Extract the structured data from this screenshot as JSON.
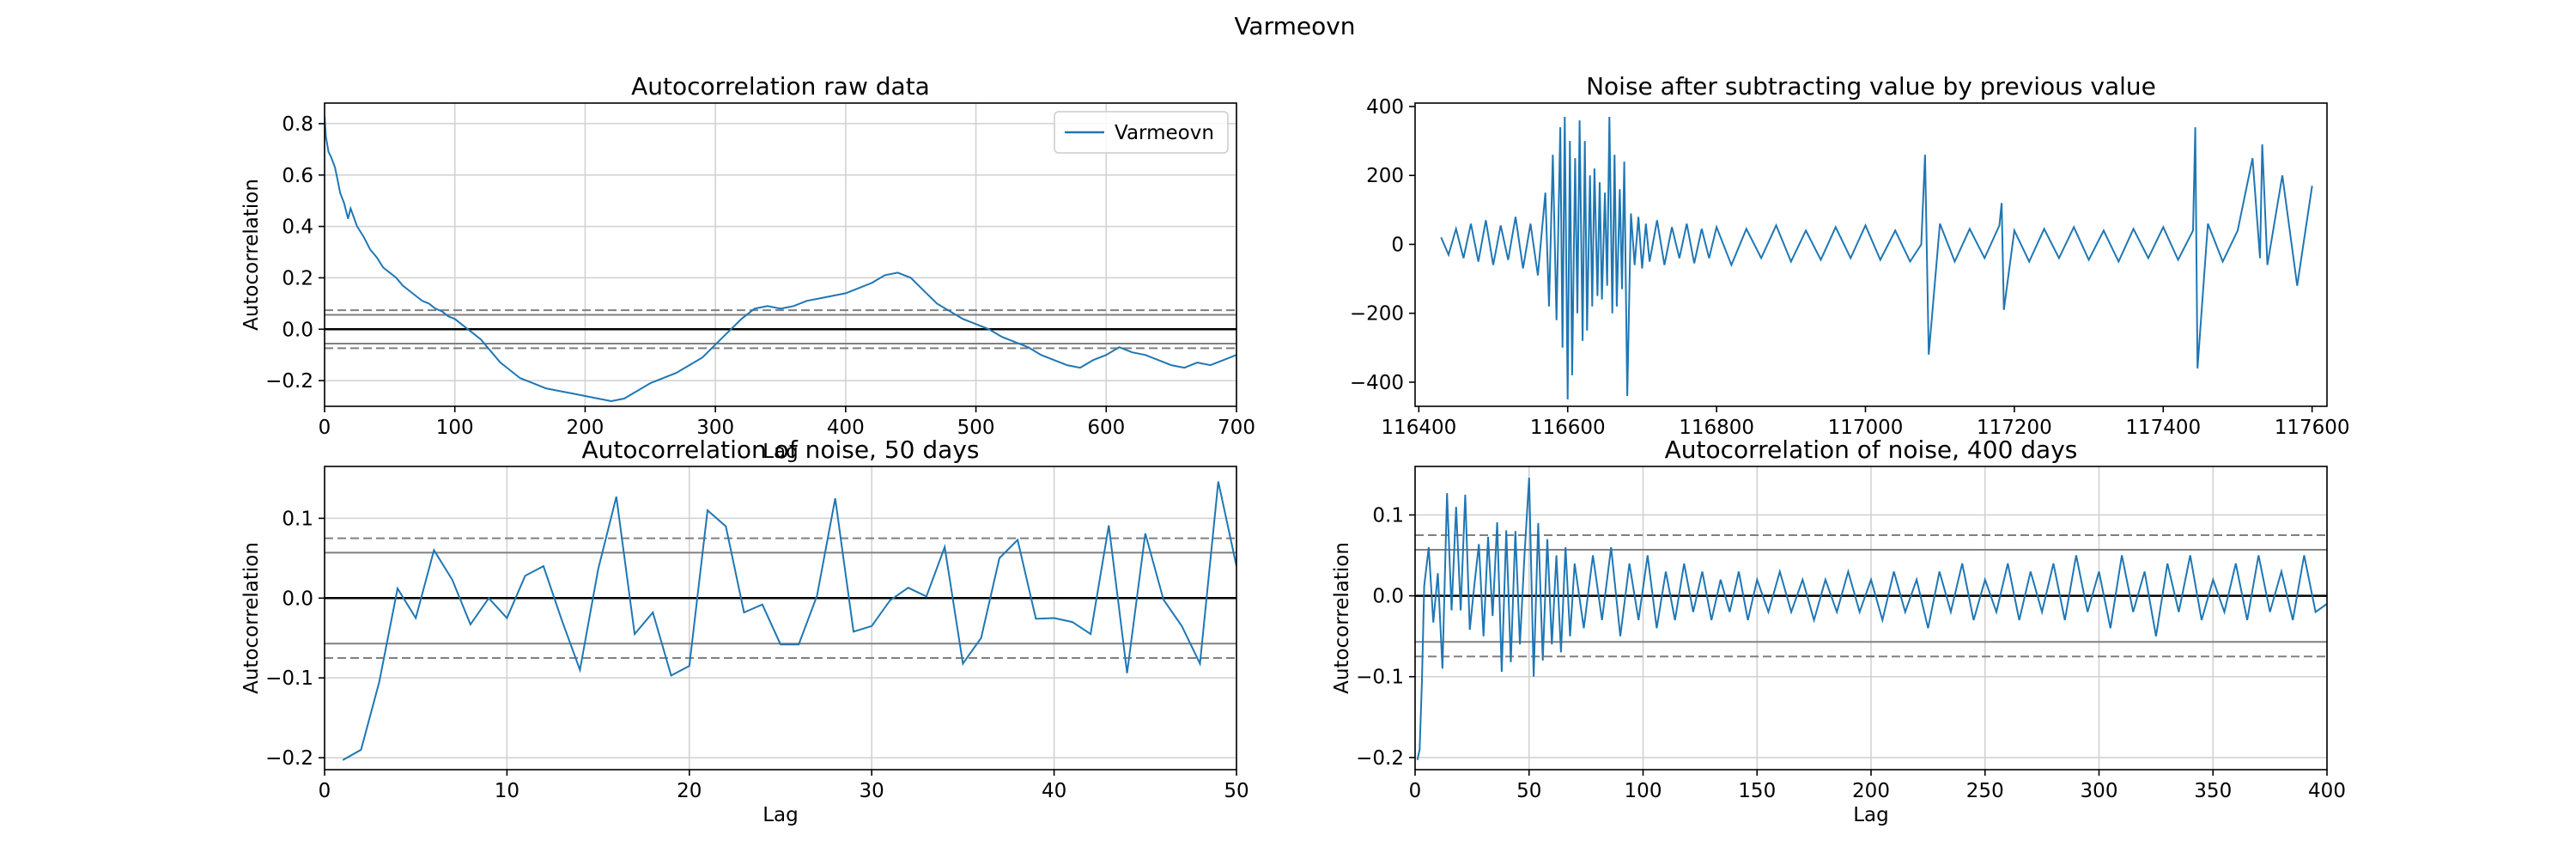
{
  "figure": {
    "suptitle": "Varmeovn"
  },
  "colors": {
    "line": "#1f77b4",
    "grid": "#d0d0d0",
    "conf99": "#808080",
    "conf95": "#808080",
    "zero": "#000000"
  },
  "chart_data": [
    {
      "type": "line",
      "title": "Autocorrelation raw data",
      "xlabel": "Lag",
      "ylabel": "Autocorrelation",
      "xlim": [
        0,
        700
      ],
      "ylim": [
        -0.3,
        0.88
      ],
      "xticks": [
        0,
        100,
        200,
        300,
        400,
        500,
        600,
        700
      ],
      "xtick_labels": [
        "0",
        "100",
        "200",
        "300",
        "400",
        "500",
        "600",
        "700"
      ],
      "yticks": [
        -0.2,
        0.0,
        0.2,
        0.4,
        0.6,
        0.8
      ],
      "ytick_labels": [
        "−0.2",
        "0.0",
        "0.2",
        "0.4",
        "0.6",
        "0.8"
      ],
      "grid": true,
      "legend": {
        "placement": "top-right",
        "entries": [
          "Varmeovn"
        ]
      },
      "conf_95": 0.056,
      "conf_99": 0.074,
      "series": [
        {
          "name": "Varmeovn",
          "x": [
            0,
            1,
            3,
            5,
            8,
            10,
            12,
            15,
            18,
            20,
            25,
            30,
            35,
            40,
            45,
            50,
            55,
            60,
            65,
            70,
            75,
            80,
            85,
            90,
            95,
            100,
            105,
            110,
            115,
            120,
            125,
            130,
            135,
            140,
            145,
            150,
            160,
            170,
            180,
            190,
            200,
            210,
            220,
            230,
            240,
            250,
            260,
            270,
            280,
            290,
            300,
            310,
            320,
            330,
            340,
            350,
            360,
            370,
            380,
            390,
            400,
            410,
            420,
            430,
            440,
            450,
            460,
            470,
            480,
            490,
            500,
            510,
            520,
            530,
            540,
            550,
            560,
            570,
            580,
            590,
            600,
            610,
            620,
            630,
            640,
            650,
            660,
            670,
            680,
            690,
            700
          ],
          "y": [
            0.83,
            0.75,
            0.69,
            0.67,
            0.63,
            0.58,
            0.53,
            0.49,
            0.43,
            0.47,
            0.4,
            0.36,
            0.31,
            0.28,
            0.24,
            0.22,
            0.2,
            0.17,
            0.15,
            0.13,
            0.11,
            0.1,
            0.08,
            0.07,
            0.05,
            0.04,
            0.02,
            0.0,
            -0.02,
            -0.04,
            -0.07,
            -0.1,
            -0.13,
            -0.15,
            -0.17,
            -0.19,
            -0.21,
            -0.23,
            -0.24,
            -0.25,
            -0.26,
            -0.27,
            -0.28,
            -0.27,
            -0.24,
            -0.21,
            -0.19,
            -0.17,
            -0.14,
            -0.11,
            -0.06,
            -0.01,
            0.04,
            0.08,
            0.09,
            0.08,
            0.09,
            0.11,
            0.12,
            0.13,
            0.14,
            0.16,
            0.18,
            0.21,
            0.22,
            0.2,
            0.15,
            0.1,
            0.07,
            0.04,
            0.02,
            0.0,
            -0.03,
            -0.05,
            -0.07,
            -0.1,
            -0.12,
            -0.14,
            -0.15,
            -0.12,
            -0.1,
            -0.07,
            -0.09,
            -0.1,
            -0.12,
            -0.14,
            -0.15,
            -0.13,
            -0.14,
            -0.12,
            -0.1
          ]
        }
      ]
    },
    {
      "type": "line",
      "title": "Noise after subtracting value by previous value",
      "xlabel": "",
      "ylabel": "",
      "xlim": [
        116395,
        117620
      ],
      "ylim": [
        -470,
        410
      ],
      "xticks": [
        116400,
        116600,
        116800,
        117000,
        117200,
        117400,
        117600
      ],
      "xtick_labels": [
        "116400",
        "116600",
        "116800",
        "117000",
        "117200",
        "117400",
        "117600"
      ],
      "yticks": [
        -400,
        -200,
        0,
        200,
        400
      ],
      "ytick_labels": [
        "−400",
        "−200",
        "0",
        "200",
        "400"
      ],
      "grid": false,
      "series": [
        {
          "x": [
            116430,
            116440,
            116450,
            116460,
            116470,
            116480,
            116490,
            116500,
            116510,
            116520,
            116530,
            116540,
            116550,
            116560,
            116570,
            116575,
            116580,
            116585,
            116590,
            116593,
            116596,
            116600,
            116603,
            116606,
            116610,
            116613,
            116616,
            116620,
            116623,
            116626,
            116630,
            116633,
            116636,
            116640,
            116643,
            116646,
            116650,
            116653,
            116656,
            116660,
            116663,
            116666,
            116670,
            116673,
            116676,
            116680,
            116685,
            116690,
            116695,
            116700,
            116705,
            116710,
            116720,
            116730,
            116740,
            116750,
            116760,
            116770,
            116780,
            116790,
            116800,
            116820,
            116840,
            116860,
            116880,
            116900,
            116920,
            116940,
            116960,
            116980,
            117000,
            117020,
            117040,
            117060,
            117075,
            117080,
            117085,
            117100,
            117120,
            117140,
            117160,
            117180,
            117183,
            117186,
            117200,
            117220,
            117240,
            117260,
            117280,
            117300,
            117320,
            117340,
            117360,
            117380,
            117400,
            117420,
            117440,
            117443,
            117446,
            117460,
            117480,
            117500,
            117520,
            117530,
            117533,
            117540,
            117560,
            117580,
            117600
          ],
          "y": [
            20,
            -30,
            45,
            -40,
            60,
            -50,
            70,
            -60,
            55,
            -45,
            80,
            -70,
            60,
            -90,
            150,
            -180,
            260,
            -220,
            340,
            -300,
            370,
            -450,
            300,
            -380,
            250,
            -200,
            360,
            -280,
            300,
            -250,
            200,
            -180,
            220,
            -150,
            180,
            -160,
            150,
            -120,
            370,
            -200,
            260,
            -180,
            160,
            -130,
            240,
            -440,
            90,
            -60,
            80,
            -70,
            60,
            -50,
            70,
            -60,
            50,
            -40,
            60,
            -55,
            45,
            -40,
            50,
            -60,
            45,
            -40,
            55,
            -50,
            40,
            -45,
            50,
            -40,
            55,
            -45,
            40,
            -50,
            0,
            260,
            -320,
            60,
            -50,
            45,
            -40,
            55,
            120,
            -190,
            40,
            -50,
            45,
            -40,
            50,
            -45,
            40,
            -50,
            45,
            -40,
            50,
            -45,
            40,
            340,
            -360,
            60,
            -50,
            40,
            250,
            -40,
            290,
            -60,
            200,
            -120,
            170
          ]
        }
      ]
    },
    {
      "type": "line",
      "title": "Autocorrelation of noise, 50 days",
      "xlabel": "Lag",
      "ylabel": "Autocorrelation",
      "xlim": [
        0,
        50
      ],
      "ylim": [
        -0.215,
        0.165
      ],
      "xticks": [
        0,
        10,
        20,
        30,
        40,
        50
      ],
      "xtick_labels": [
        "0",
        "10",
        "20",
        "30",
        "40",
        "50"
      ],
      "yticks": [
        -0.2,
        -0.1,
        0.0,
        0.1
      ],
      "ytick_labels": [
        "−0.2",
        "−0.1",
        "0.0",
        "0.1"
      ],
      "grid": true,
      "conf_95": 0.057,
      "conf_99": 0.075,
      "series": [
        {
          "x": [
            1,
            2,
            3,
            4,
            5,
            6,
            7,
            8,
            9,
            10,
            11,
            12,
            13,
            14,
            15,
            16,
            17,
            18,
            19,
            20,
            21,
            22,
            23,
            24,
            25,
            26,
            27,
            28,
            29,
            30,
            31,
            32,
            33,
            34,
            35,
            36,
            37,
            38,
            39,
            40,
            41,
            42,
            43,
            44,
            45,
            46,
            47,
            48,
            49,
            50
          ],
          "y": [
            -0.203,
            -0.19,
            -0.105,
            0.012,
            -0.025,
            0.06,
            0.023,
            -0.033,
            0.0,
            -0.025,
            0.028,
            0.04,
            -0.027,
            -0.09,
            0.036,
            0.127,
            -0.045,
            -0.018,
            -0.097,
            -0.085,
            0.11,
            0.09,
            -0.018,
            -0.008,
            -0.058,
            -0.058,
            0.003,
            0.125,
            -0.042,
            -0.035,
            -0.003,
            0.013,
            0.002,
            0.064,
            -0.082,
            -0.05,
            0.05,
            0.073,
            -0.026,
            -0.025,
            -0.03,
            -0.045,
            0.091,
            -0.094,
            0.081,
            -0.002,
            -0.035,
            -0.082,
            0.146,
            0.04
          ]
        }
      ]
    },
    {
      "type": "line",
      "title": "Autocorrelation of noise, 400 days",
      "xlabel": "Lag",
      "ylabel": "Autocorrelation",
      "xlim": [
        0,
        400
      ],
      "ylim": [
        -0.215,
        0.16
      ],
      "xticks": [
        0,
        50,
        100,
        150,
        200,
        250,
        300,
        350,
        400
      ],
      "xtick_labels": [
        "0",
        "50",
        "100",
        "150",
        "200",
        "250",
        "300",
        "350",
        "400"
      ],
      "yticks": [
        -0.2,
        -0.1,
        0.0,
        0.1
      ],
      "ytick_labels": [
        "−0.2",
        "−0.1",
        "0.0",
        "0.1"
      ],
      "grid": true,
      "conf_95": 0.057,
      "conf_99": 0.075,
      "series": [
        {
          "x": [
            1,
            2,
            3,
            4,
            6,
            8,
            10,
            12,
            14,
            16,
            18,
            20,
            22,
            24,
            26,
            28,
            30,
            32,
            34,
            36,
            38,
            40,
            42,
            44,
            46,
            48,
            50,
            52,
            54,
            56,
            58,
            60,
            62,
            64,
            66,
            68,
            70,
            74,
            78,
            82,
            86,
            90,
            94,
            98,
            102,
            106,
            110,
            114,
            118,
            122,
            126,
            130,
            134,
            138,
            142,
            146,
            150,
            155,
            160,
            165,
            170,
            175,
            180,
            185,
            190,
            195,
            200,
            205,
            210,
            215,
            220,
            225,
            230,
            235,
            240,
            245,
            250,
            255,
            260,
            265,
            270,
            275,
            280,
            285,
            290,
            295,
            300,
            305,
            310,
            315,
            320,
            325,
            330,
            335,
            340,
            345,
            350,
            355,
            360,
            365,
            370,
            375,
            380,
            385,
            390,
            395,
            400
          ],
          "y": [
            -0.203,
            -0.19,
            -0.105,
            0.012,
            0.06,
            -0.033,
            0.028,
            -0.09,
            0.127,
            -0.018,
            0.11,
            -0.018,
            0.125,
            -0.042,
            0.013,
            0.064,
            -0.05,
            0.073,
            -0.025,
            0.091,
            -0.094,
            0.081,
            -0.082,
            0.08,
            -0.06,
            0.05,
            0.146,
            -0.1,
            0.09,
            -0.08,
            0.07,
            -0.06,
            0.05,
            -0.07,
            0.06,
            -0.05,
            0.04,
            -0.04,
            0.05,
            -0.03,
            0.06,
            -0.05,
            0.04,
            -0.03,
            0.05,
            -0.04,
            0.03,
            -0.03,
            0.04,
            -0.02,
            0.03,
            -0.03,
            0.02,
            -0.02,
            0.03,
            -0.03,
            0.02,
            -0.02,
            0.03,
            -0.02,
            0.02,
            -0.03,
            0.02,
            -0.02,
            0.03,
            -0.02,
            0.02,
            -0.03,
            0.03,
            -0.02,
            0.02,
            -0.04,
            0.03,
            -0.02,
            0.04,
            -0.03,
            0.02,
            -0.02,
            0.04,
            -0.03,
            0.03,
            -0.02,
            0.04,
            -0.03,
            0.05,
            -0.02,
            0.03,
            -0.04,
            0.05,
            -0.02,
            0.03,
            -0.05,
            0.04,
            -0.02,
            0.05,
            -0.03,
            0.02,
            -0.02,
            0.04,
            -0.03,
            0.05,
            -0.02,
            0.03,
            -0.03,
            0.05,
            -0.02,
            -0.01
          ]
        }
      ]
    }
  ]
}
